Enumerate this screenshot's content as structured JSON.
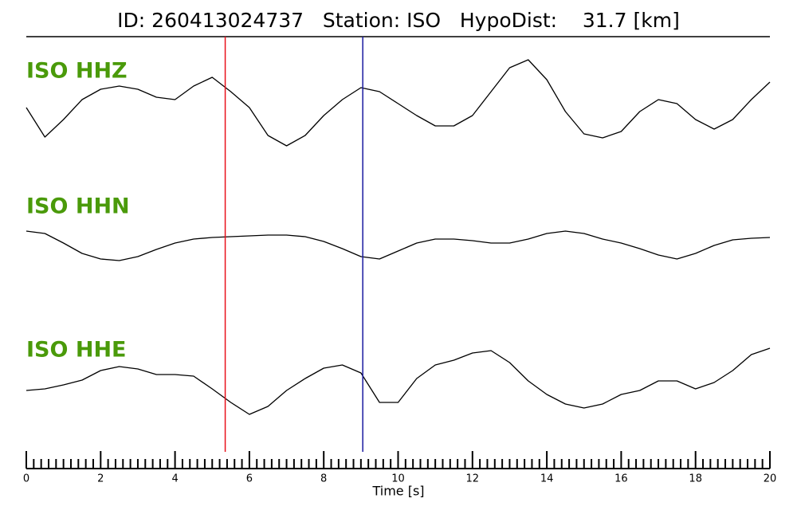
{
  "chart_data": {
    "type": "seismogram",
    "title": "ID: 260413024737   Station: ISO   HypoDist:    31.7 [km]",
    "x_label": "Time [s]",
    "label_color": "#4a9a0a",
    "xlim": [
      0,
      20
    ],
    "xticks": [
      0,
      2,
      4,
      6,
      8,
      10,
      12,
      14,
      16,
      18,
      20
    ],
    "xminorticks": [
      0.2,
      0.4,
      0.6,
      0.8,
      1,
      1.2,
      1.4,
      1.6,
      1.8,
      2.2,
      2.4,
      2.6,
      2.8,
      3,
      3.2,
      3.4,
      3.6,
      3.8,
      4.2,
      4.4,
      4.6,
      4.8,
      5,
      5.2,
      5.4,
      5.6,
      5.8,
      6.2,
      6.4,
      6.6,
      6.8,
      7,
      7.2,
      7.4,
      7.6,
      7.8,
      8.2,
      8.4,
      8.6,
      8.8,
      9,
      9.2,
      9.4,
      9.6,
      9.8,
      10.2,
      10.4,
      10.6,
      10.8,
      11,
      11.2,
      11.4,
      11.6,
      11.8,
      12.2,
      12.4,
      12.6,
      12.8,
      13,
      13.2,
      13.4,
      13.6,
      13.8,
      14.2,
      14.4,
      14.6,
      14.8,
      15,
      15.2,
      15.4,
      15.6,
      15.8,
      16.2,
      16.4,
      16.6,
      16.8,
      17,
      17.2,
      17.4,
      17.6,
      17.8,
      18.2,
      18.4,
      18.6,
      18.8,
      19,
      19.2,
      19.4,
      19.6,
      19.8
    ],
    "ylim": [
      -70,
      70
    ],
    "x": [
      0,
      0.5,
      1,
      1.5,
      2,
      2.5,
      3,
      3.5,
      4,
      4.5,
      5,
      5.5,
      6,
      6.5,
      7,
      7.5,
      8,
      8.5,
      9,
      9.5,
      10,
      10.5,
      11,
      11.5,
      12,
      12.5,
      13,
      13.5,
      14,
      14.5,
      15,
      15.5,
      16,
      16.5,
      17,
      17.5,
      18,
      18.5,
      19,
      19.5,
      20
    ],
    "series": [
      {
        "name": "ISO HHZ",
        "color": "#000000",
        "values": [
          -5,
          -42,
          -20,
          5,
          18,
          22,
          18,
          8,
          5,
          22,
          33,
          15,
          -5,
          -40,
          -53,
          -40,
          -15,
          5,
          20,
          15,
          0,
          -15,
          -28,
          -28,
          -15,
          15,
          45,
          55,
          30,
          -10,
          -38,
          -43,
          -35,
          -10,
          5,
          0,
          -20,
          -32,
          -20,
          5,
          27
        ]
      },
      {
        "name": "ISO HHN",
        "color": "#000000",
        "values": [
          10,
          7,
          -5,
          -18,
          -25,
          -27,
          -22,
          -13,
          -5,
          0,
          2,
          3,
          4,
          5,
          5,
          3,
          -3,
          -12,
          -22,
          -25,
          -15,
          -5,
          0,
          0,
          -2,
          -5,
          -5,
          0,
          7,
          10,
          7,
          0,
          -5,
          -12,
          -20,
          -25,
          -18,
          -8,
          -1,
          1,
          2
        ]
      },
      {
        "name": "ISO HHE",
        "color": "#000000",
        "values": [
          -10,
          -8,
          -3,
          3,
          15,
          20,
          17,
          10,
          10,
          8,
          -8,
          -25,
          -40,
          -30,
          -10,
          5,
          18,
          22,
          12,
          -25,
          -25,
          5,
          22,
          28,
          37,
          40,
          25,
          2,
          -15,
          -27,
          -32,
          -27,
          -15,
          -10,
          2,
          2,
          -8,
          0,
          15,
          35,
          43
        ]
      }
    ],
    "vlines": [
      {
        "x": 5.35,
        "color": "#e8101a"
      },
      {
        "x": 9.05,
        "color": "#1a1aa0"
      }
    ]
  }
}
